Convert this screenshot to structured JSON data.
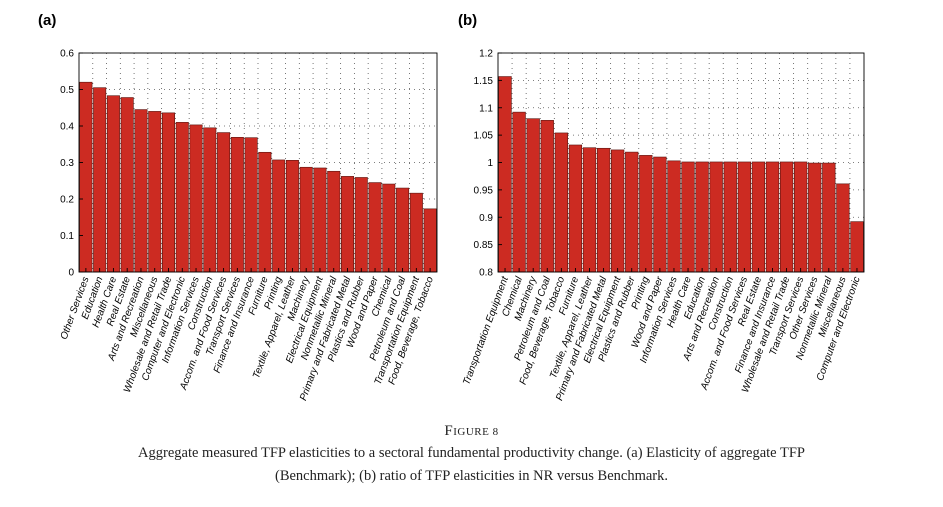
{
  "figure": {
    "number": "Figure 8",
    "caption_line1": "Aggregate measured TFP elasticities to a sectoral fundamental productivity change. (a) Elasticity of aggregate TFP",
    "caption_line2": "(Benchmark); (b) ratio of TFP elasticities in NR versus Benchmark."
  },
  "colors": {
    "bar": "#cc2b22",
    "bar_edge": "#5a1510",
    "grid": "#555555"
  },
  "chart_data": [
    {
      "panel_label": "(a)",
      "type": "bar",
      "grid": true,
      "ylim": [
        0,
        0.6
      ],
      "yticks": [
        0,
        0.1,
        0.2,
        0.3,
        0.4,
        0.5,
        0.6
      ],
      "ytick_labels": [
        "0",
        "0.1",
        "0.2",
        "0.3",
        "0.4",
        "0.5",
        "0.6"
      ],
      "categories": [
        "Other Services",
        "Education",
        "Health Care",
        "Real Estate",
        "Arts and Recreation",
        "Miscellaneous",
        "Wholesale and Retail Trade",
        "Computer and Electronic",
        "Information Services",
        "Construction",
        "Accom. and Food Services",
        "Transport Services",
        "Finance and Insurance",
        "Furniture",
        "Printing",
        "Textile, Apparel, Leather",
        "Machinery",
        "Electrical Equipment",
        "Nonmetallic Mineral",
        "Primary and Fabricated Metal",
        "Plastics and Rubber",
        "Wood and Paper",
        "Chemical",
        "Petroleum and Coal",
        "Transportation Equipment",
        "Food, Beverage, Tobacco"
      ],
      "values": [
        0.52,
        0.505,
        0.483,
        0.478,
        0.445,
        0.44,
        0.436,
        0.41,
        0.403,
        0.395,
        0.382,
        0.369,
        0.368,
        0.328,
        0.307,
        0.306,
        0.287,
        0.285,
        0.276,
        0.262,
        0.259,
        0.245,
        0.241,
        0.23,
        0.216,
        0.173
      ]
    },
    {
      "panel_label": "(b)",
      "type": "bar",
      "grid": true,
      "ylim": [
        0.8,
        1.2
      ],
      "yticks": [
        0.8,
        0.85,
        0.9,
        0.95,
        1.0,
        1.05,
        1.1,
        1.15,
        1.2
      ],
      "ytick_labels": [
        "0.8",
        "0.85",
        "0.9",
        "0.95",
        "1",
        "1.05",
        "1.1",
        "1.15",
        "1.2"
      ],
      "categories": [
        "Transportation Equipment",
        "Chemical",
        "Machinery",
        "Petroleum and Coal",
        "Food, Beverage, Tobacco",
        "Furniture",
        "Textile, Apparel, Leather",
        "Primary and Fabricated Metal",
        "Electrical Equipment",
        "Plastics and Rubber",
        "Printing",
        "Wood and Paper",
        "Information Services",
        "Health Care",
        "Education",
        "Arts and Recreation",
        "Construction",
        "Accom. and Food Services",
        "Real Estate",
        "Finance and Insurance",
        "Wholesale and Retail Trade",
        "Transport Services",
        "Other Services",
        "Nonmetallic Mineral",
        "Miscellaneous",
        "Computer and Electronic"
      ],
      "values": [
        1.157,
        1.092,
        1.08,
        1.077,
        1.054,
        1.032,
        1.027,
        1.026,
        1.023,
        1.019,
        1.013,
        1.01,
        1.003,
        1.001,
        1.001,
        1.001,
        1.001,
        1.001,
        1.001,
        1.001,
        1.001,
        1.001,
        0.999,
        0.999,
        0.961,
        0.892
      ]
    }
  ]
}
